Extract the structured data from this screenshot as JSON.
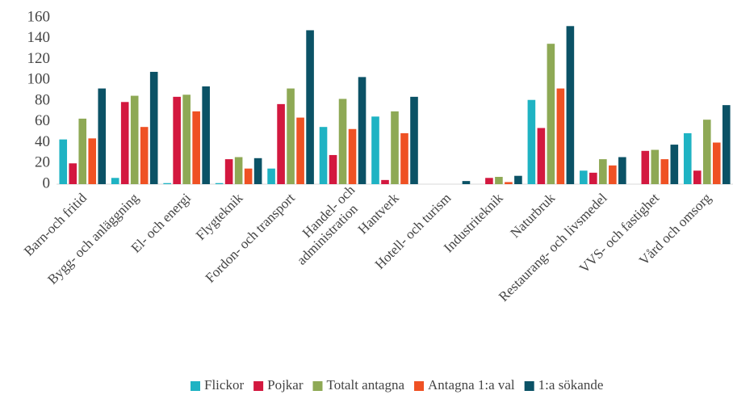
{
  "chart_data": {
    "type": "bar",
    "categories": [
      "Barn-och fritid",
      "Bygg- och anläggning",
      "El- och energi",
      "Flygteknik",
      "Fordon- och transport",
      "Handel- och\nadministration",
      "Hantverk",
      "Hotell- och turism",
      "Industriteknik",
      "Naturbruk",
      "Restaurang- och livsmedel",
      "VVS- och fastighet",
      "Vård och omsorg"
    ],
    "series": [
      {
        "name": "Flickor",
        "color": "#1fb3c3",
        "values": [
          43,
          6,
          1,
          1,
          15,
          55,
          65,
          0,
          0,
          81,
          13,
          0,
          49
        ]
      },
      {
        "name": "Pojkar",
        "color": "#d3183f",
        "values": [
          20,
          79,
          84,
          24,
          77,
          28,
          4,
          0,
          6,
          54,
          11,
          32,
          13
        ]
      },
      {
        "name": "Totalt antagna",
        "color": "#8ea955",
        "values": [
          63,
          85,
          86,
          26,
          92,
          82,
          70,
          0,
          7,
          135,
          24,
          33,
          62
        ]
      },
      {
        "name": "Antagna 1:a val",
        "color": "#ef5124",
        "values": [
          44,
          55,
          70,
          15,
          64,
          53,
          49,
          0,
          2,
          92,
          18,
          24,
          40
        ]
      },
      {
        "name": "1:a sökande",
        "color": "#0b5266",
        "values": [
          92,
          108,
          94,
          25,
          148,
          103,
          84,
          3,
          8,
          152,
          26,
          38,
          76
        ]
      }
    ],
    "ylim": [
      0,
      160
    ],
    "yticks": [
      0,
      20,
      40,
      60,
      80,
      100,
      120,
      140,
      160
    ],
    "grid": false,
    "legend": "bottom"
  }
}
